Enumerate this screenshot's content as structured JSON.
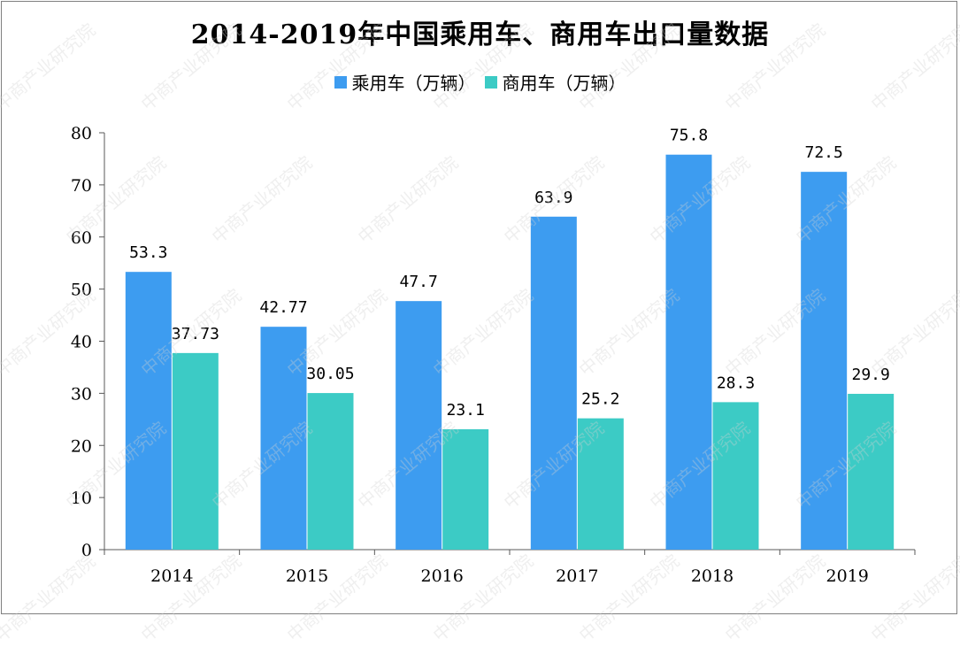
{
  "chart_data": {
    "type": "bar",
    "title": "2014-2019年中国乘用车、商用车出口量数据",
    "categories": [
      "2014",
      "2015",
      "2016",
      "2017",
      "2018",
      "2019"
    ],
    "series": [
      {
        "name": "乘用车（万辆）",
        "values": [
          53.3,
          42.77,
          47.7,
          63.9,
          75.8,
          72.5
        ],
        "labels": [
          "53.3",
          "42.77",
          "47.7",
          "63.9",
          "75.8",
          "72.5"
        ],
        "color": "#3d9cf0"
      },
      {
        "name": "商用车（万辆）",
        "values": [
          37.73,
          30.05,
          23.1,
          25.2,
          28.3,
          29.9
        ],
        "labels": [
          "37.73",
          "30.05",
          "23.1",
          "25.2",
          "28.3",
          "29.9"
        ],
        "color": "#3ccbc5"
      }
    ],
    "ylim": [
      0,
      80
    ],
    "yticks": [
      "0",
      "10",
      "20",
      "30",
      "40",
      "50",
      "60",
      "70",
      "80"
    ],
    "grid": false,
    "legend": "top-center"
  },
  "watermark": "中商产业研究院"
}
